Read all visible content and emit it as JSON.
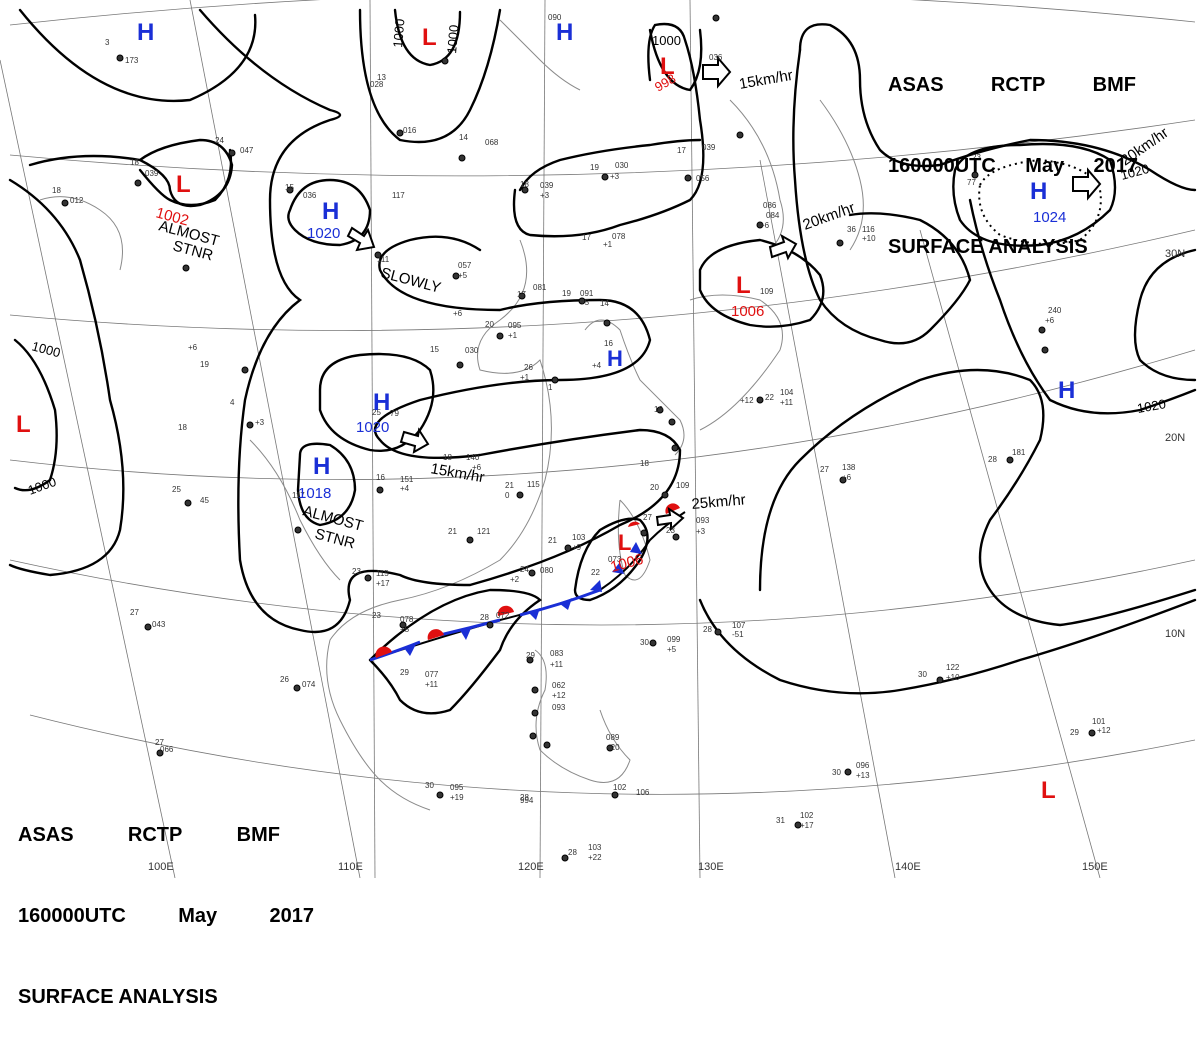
{
  "header": {
    "line1": [
      "ASAS",
      "RCTP",
      "BMF"
    ],
    "line2": [
      "160000UTC",
      "May",
      "2017"
    ],
    "line3": "SURFACE ANALYSIS"
  },
  "colors": {
    "high": "#1a2fd6",
    "low": "#e01010",
    "isobar": "#000000",
    "grid": "#777777",
    "coast": "#888888"
  },
  "pressure_centers": [
    {
      "type": "H",
      "value": ""
    },
    {
      "type": "L",
      "value": ""
    },
    {
      "type": "H",
      "value": ""
    },
    {
      "type": "L",
      "value": "998"
    },
    {
      "type": "L",
      "value": "1002"
    },
    {
      "type": "H",
      "value": "1020"
    },
    {
      "type": "H",
      "value": "1024"
    },
    {
      "type": "L",
      "value": "1006"
    },
    {
      "type": "H",
      "value": ""
    },
    {
      "type": "L",
      "value": ""
    },
    {
      "type": "H",
      "value": "1020"
    },
    {
      "type": "H",
      "value": "1018"
    },
    {
      "type": "H",
      "value": ""
    },
    {
      "type": "L",
      "value": "1006"
    },
    {
      "type": "L",
      "value": ""
    }
  ],
  "motion_labels": [
    "15km/hr",
    "20km/hr",
    "20km/hr",
    "15km/hr",
    "25km/hr"
  ],
  "annotations": [
    "ALMOST",
    "STNR",
    "SLOWLY",
    "ALMOST",
    "STNR"
  ],
  "isobar_labels": [
    "1000",
    "1000",
    "1000",
    "998",
    "1000",
    "1000",
    "1020",
    "1020"
  ],
  "lat_labels": [
    "30N",
    "20N",
    "10N"
  ],
  "lon_labels": [
    "100E",
    "110E",
    "120E",
    "130E",
    "140E",
    "150E"
  ]
}
